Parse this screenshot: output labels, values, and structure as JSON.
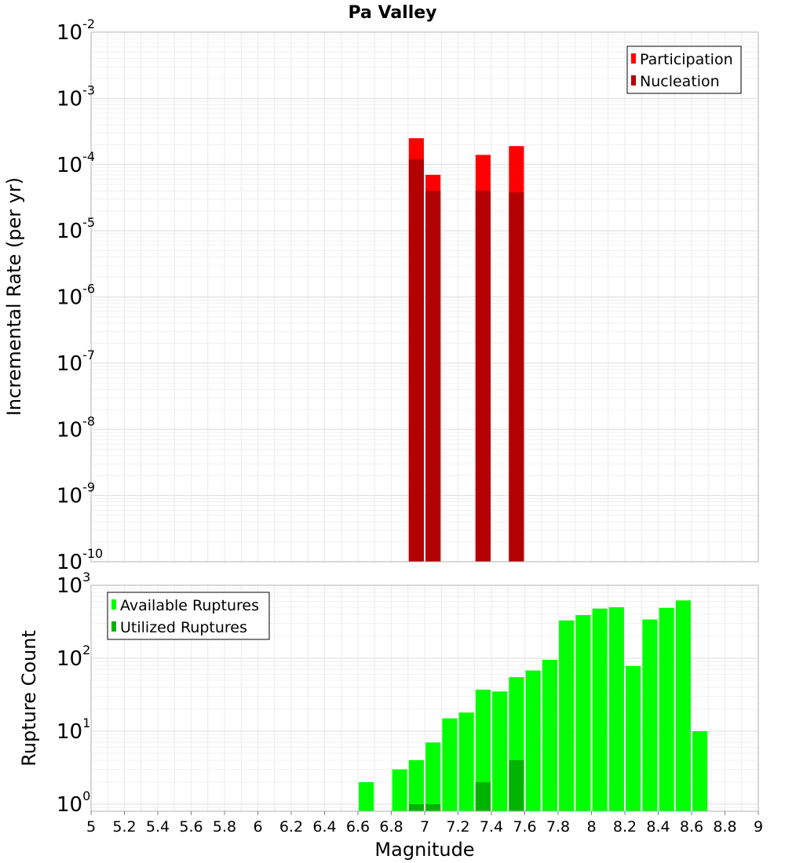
{
  "chart_data": [
    {
      "type": "bar",
      "title": "Pa Valley",
      "xlabel": "Magnitude",
      "ylabel": "Incremental Rate (per yr)",
      "yscale": "log",
      "xlim": [
        5,
        9
      ],
      "ylim": [
        1e-10,
        0.01
      ],
      "y_tick_exponents": [
        -10,
        -9,
        -8,
        -7,
        -6,
        -5,
        -4,
        -3,
        -2
      ],
      "grid": true,
      "legend_position": "top-right",
      "bar_width": 0.09,
      "series": [
        {
          "name": "Participation",
          "color": "#ff0000",
          "x": [
            6.95,
            7.05,
            7.35,
            7.55
          ],
          "values": [
            0.00025,
            7e-05,
            0.00014,
            0.00019
          ]
        },
        {
          "name": "Nucleation",
          "color": "#b30000",
          "x": [
            6.95,
            7.05,
            7.35,
            7.55
          ],
          "values": [
            0.00012,
            4e-05,
            4e-05,
            3.8e-05
          ]
        }
      ]
    },
    {
      "type": "bar",
      "title": "",
      "xlabel": "Magnitude",
      "ylabel": "Rupture Count",
      "yscale": "log",
      "xlim": [
        5,
        9
      ],
      "ylim": [
        0.8,
        1000
      ],
      "y_tick_exponents": [
        0,
        1,
        2,
        3
      ],
      "x_ticks": [
        "5",
        "5.2",
        "5.4",
        "5.6",
        "5.8",
        "6",
        "6.2",
        "6.4",
        "6.6",
        "6.8",
        "7",
        "7.2",
        "7.4",
        "7.6",
        "7.8",
        "8",
        "8.2",
        "8.4",
        "8.6",
        "8.8",
        "9"
      ],
      "grid": true,
      "legend_position": "top-left",
      "bar_width": 0.09,
      "series": [
        {
          "name": "Available Ruptures",
          "color": "#00ff00",
          "x": [
            6.65,
            6.85,
            6.95,
            7.05,
            7.15,
            7.25,
            7.35,
            7.45,
            7.55,
            7.65,
            7.75,
            7.85,
            7.95,
            8.05,
            8.15,
            8.25,
            8.35,
            8.45,
            8.55,
            8.65
          ],
          "values": [
            2,
            3,
            4,
            7,
            15,
            18,
            37,
            35,
            55,
            68,
            95,
            330,
            390,
            480,
            500,
            78,
            340,
            490,
            620,
            10
          ]
        },
        {
          "name": "Utilized Ruptures",
          "color": "#00b300",
          "x": [
            6.95,
            7.05,
            7.35,
            7.55
          ],
          "values": [
            1,
            1,
            2,
            4
          ]
        }
      ]
    }
  ]
}
